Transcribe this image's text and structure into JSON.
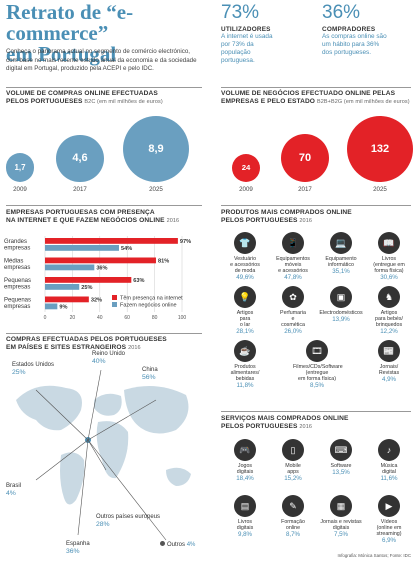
{
  "header": {
    "title_line1": "Retrato de “e-commerce”",
    "title_line2": "em Portugal",
    "intro": "Conheça o panorama actual no segmento de comércio electrónico, com base no mais recente estudo anual da economia e da sociedade digital em Portugal, produzido pela ACEPI e pelo IDC."
  },
  "stats": [
    {
      "value": "73%",
      "heading": "UTILIZADORES",
      "text": "A internet é usada por 73% da população portuguesa."
    },
    {
      "value": "36%",
      "heading": "COMPRADORES",
      "text": "As compras online são um hábito para 36% dos portugueses."
    }
  ],
  "chart_data": [
    {
      "type": "bubble",
      "title": "VOLUME DE COMPRAS ONLINE EFECTUADAS PELOS PORTUGUESES",
      "subtitle": "B2C (em mil milhões de euros)",
      "categories": [
        "2009",
        "2017",
        "2025"
      ],
      "values": [
        1.7,
        4.6,
        8.9
      ],
      "value_labels": [
        "1,7",
        "4,6",
        "8,9"
      ],
      "color": "#6a9fc0"
    },
    {
      "type": "bubble",
      "title": "VOLUME DE NEGÓCIOS EFECTUADO ONLINE PELAS EMPRESAS E PELO ESTADO",
      "subtitle": "B2B+B2G (em mil milhões de euros)",
      "categories": [
        "2009",
        "2017",
        "2025"
      ],
      "values": [
        24,
        70,
        132
      ],
      "value_labels": [
        "24",
        "70",
        "132"
      ],
      "color": "#e32227"
    },
    {
      "type": "bar",
      "orientation": "horizontal",
      "title": "EMPRESAS PORTUGUESAS COM PRESENÇA NA INTERNET E QUE FAZEM NEGÓCIOS ONLINE",
      "subtitle": "2016",
      "categories": [
        "Grandes empresas",
        "Médias empresas",
        "Pequenas empresas",
        "Pequenas empresas"
      ],
      "category_lines": [
        [
          "Grandes",
          "empresas"
        ],
        [
          "Médias",
          "empresas"
        ],
        [
          "Pequenas",
          "empresas"
        ],
        [
          "Pequenas",
          "empresas"
        ]
      ],
      "series": [
        {
          "name": "Têm presença na internet",
          "values": [
            97,
            81,
            63,
            32
          ],
          "color": "#e32227"
        },
        {
          "name": "Fazem negócios online",
          "values": [
            54,
            36,
            25,
            9
          ],
          "color": "#6a9fc0"
        }
      ],
      "xlim": [
        0,
        100
      ],
      "xticks": [
        0,
        20,
        40,
        60,
        80,
        100
      ]
    }
  ],
  "headings": {
    "bubble_b2c": "VOLUME DE COMPRAS ONLINE EFECTUADAS",
    "bubble_b2c_2": "PELOS PORTUGUESES",
    "bubble_b2c_sub": "B2C (em mil milhões de euros)",
    "bubble_b2b": "VOLUME DE NEGÓCIOS EFECTUADO ONLINE PELAS",
    "bubble_b2b_2": "EMPRESAS E PELO ESTADO",
    "bubble_b2b_sub": "B2B+B2G (em mil milhões de euros)",
    "bars_1": "EMPRESAS PORTUGUESAS COM PRESENÇA",
    "bars_2": "NA INTERNET E QUE FAZEM NEGÓCIOS ONLINE",
    "bars_sub": "2016",
    "map_1": "COMPRAS EFECTUADAS PELOS PORTUGUESES",
    "map_2": "EM PAÍSES E SITES ESTRANGEIROS",
    "map_sub": "2016",
    "products_1": "PRODUTOS MAIS COMPRADOS ONLINE",
    "products_2": "PELOS PORTUGUESES",
    "products_sub": "2016",
    "services_1": "SERVIÇOS MAIS COMPRADOS ONLINE",
    "services_2": "PELOS PORTUGUESES",
    "services_sub": "2016"
  },
  "map": [
    {
      "name": "Estados Unidos",
      "value": "25%"
    },
    {
      "name": "Reino Unido",
      "value": "40%"
    },
    {
      "name": "China",
      "value": "56%"
    },
    {
      "name": "Brasil",
      "value": "4%"
    },
    {
      "name": "Outros países europeus",
      "value": "28%"
    },
    {
      "name": "Espanha",
      "value": "36%"
    },
    {
      "name": "Outros",
      "value": "4%"
    }
  ],
  "products": [
    {
      "icon": "clothes-icon",
      "lines": [
        "Vestuário",
        "e acessórios",
        "de moda"
      ],
      "value": "49,6%"
    },
    {
      "icon": "phone-icon",
      "lines": [
        "Equipamentos",
        "móveis",
        "e acessórios"
      ],
      "value": "47,8%"
    },
    {
      "icon": "laptop-icon",
      "lines": [
        "Equipamento",
        "informático"
      ],
      "value": "35,1%"
    },
    {
      "icon": "book-icon",
      "lines": [
        "Livros",
        "(entregue em",
        "forma física)"
      ],
      "value": "30,6%"
    },
    {
      "icon": "lamp-icon",
      "lines": [
        "Artigos",
        "para",
        "o lar"
      ],
      "value": "28,1%"
    },
    {
      "icon": "perfume-icon",
      "lines": [
        "Perfumaria",
        "e",
        "cosmética"
      ],
      "value": "26,0%"
    },
    {
      "icon": "appliance-icon",
      "lines": [
        "Electrodomésticos"
      ],
      "value": "13,9%"
    },
    {
      "icon": "toy-icon",
      "lines": [
        "Artigos",
        "para bebés/",
        "brinquedos"
      ],
      "value": "12,2%"
    },
    {
      "icon": "food-icon",
      "lines": [
        "Produtos",
        "alimentares/",
        "bebidas"
      ],
      "value": "11,8%"
    },
    {
      "icon": "film-icon",
      "lines": [
        "Filmes/CDs/Software",
        "(entregue",
        "em forma física)"
      ],
      "value": "8,5%"
    },
    {
      "icon": "newspaper-icon",
      "lines": [
        "Jornais/",
        "Revistas"
      ],
      "value": "4,9%"
    }
  ],
  "services": [
    {
      "icon": "gamepad-icon",
      "lines": [
        "Jogos",
        "digitais"
      ],
      "value": "18,4%"
    },
    {
      "icon": "mobile-app-icon",
      "lines": [
        "Mobile",
        "apps"
      ],
      "value": "15,2%"
    },
    {
      "icon": "software-icon",
      "lines": [
        "Software"
      ],
      "value": "13,5%"
    },
    {
      "icon": "music-icon",
      "lines": [
        "Música",
        "digital"
      ],
      "value": "11,6%"
    },
    {
      "icon": "ebook-icon",
      "lines": [
        "Livros",
        "digitais"
      ],
      "value": "9,8%"
    },
    {
      "icon": "training-icon",
      "lines": [
        "Formação",
        "online"
      ],
      "value": "8,7%"
    },
    {
      "icon": "digital-news-icon",
      "lines": [
        "Jornais e revistas",
        "digitais"
      ],
      "value": "7,5%"
    },
    {
      "icon": "video-icon",
      "lines": [
        "Vídeos",
        "(online em",
        "streaming)"
      ],
      "value": "6,9%"
    }
  ],
  "credit": "Infografia: Mónica Santos; Fonte: IDC",
  "colors": {
    "accent": "#4a8fb5",
    "red": "#e32227",
    "blue_bubble": "#6a9fc0",
    "dark": "#333333"
  }
}
